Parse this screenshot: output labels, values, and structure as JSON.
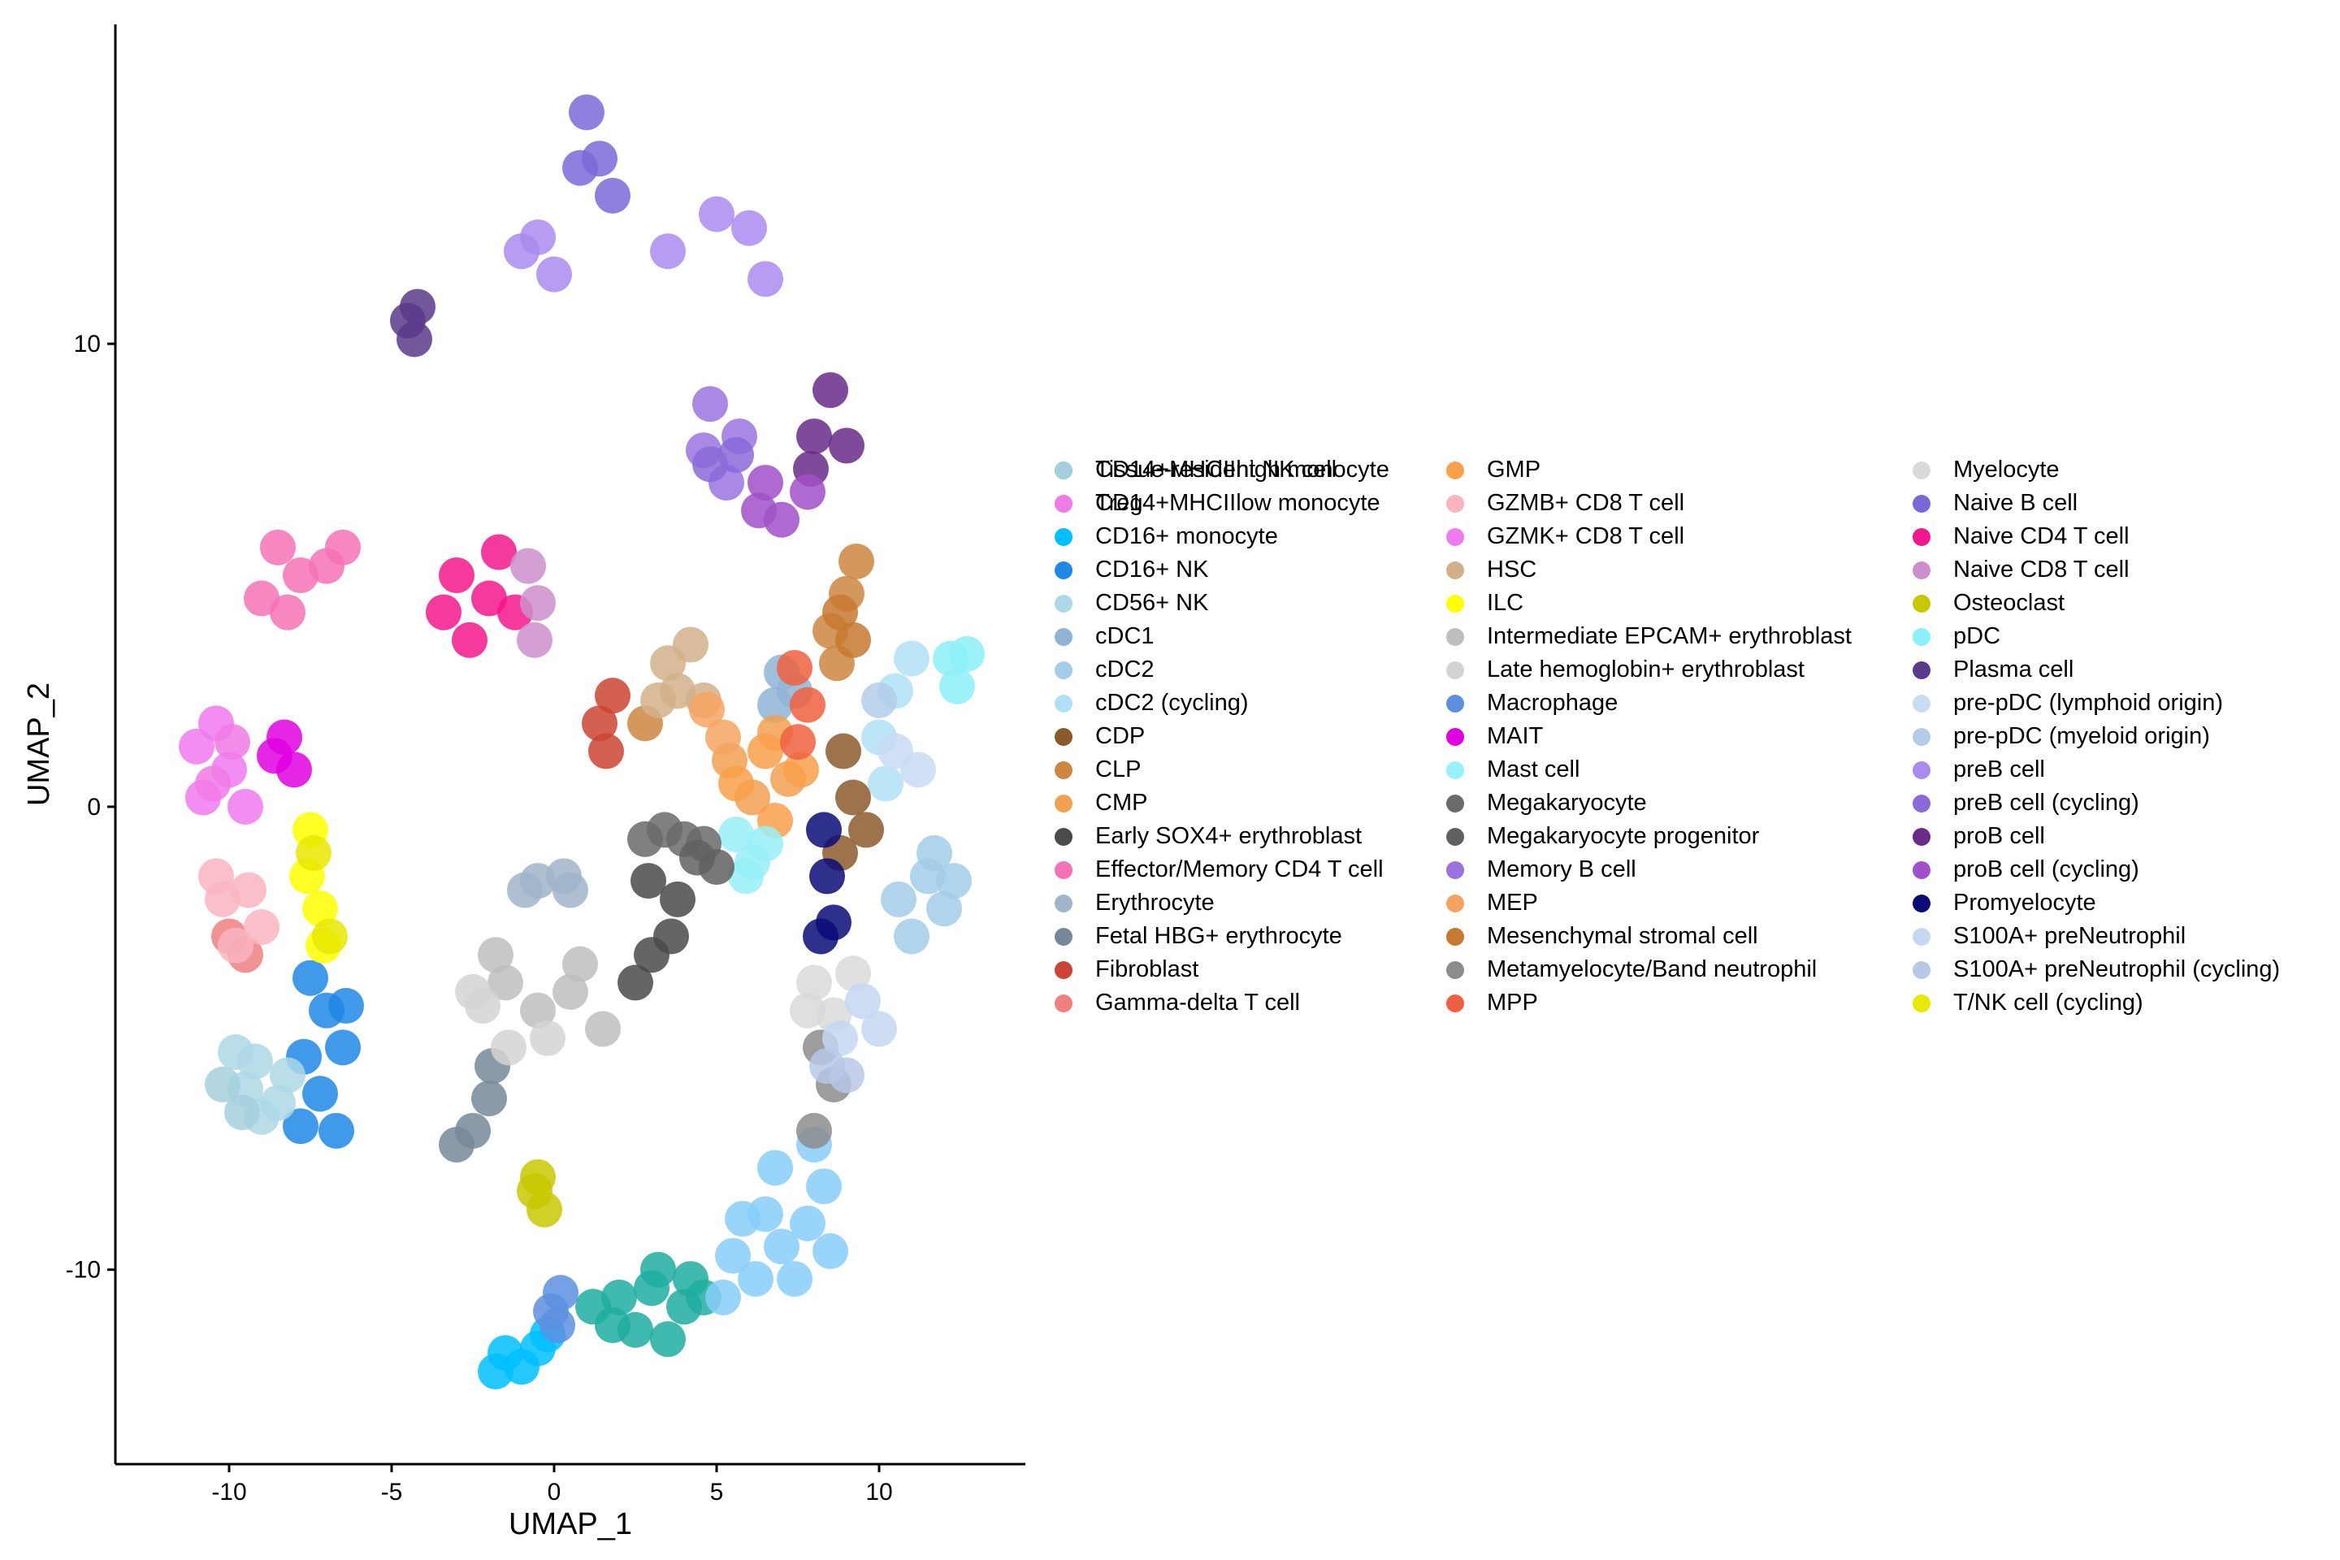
{
  "chart_data": {
    "type": "scatter",
    "title": "",
    "xlabel": "UMAP_1",
    "ylabel": "UMAP_2",
    "xlim": [
      -13.5,
      14.5
    ],
    "ylim": [
      -14.2,
      16.9
    ],
    "xticks": [
      -10,
      -5,
      0,
      5,
      10
    ],
    "yticks": [
      -10,
      0,
      10
    ],
    "grid": false,
    "legend_position": "right",
    "series": [
      {
        "name": "CD14+MHCIIhigh monocyte",
        "color": "#1FADA0",
        "points": [
          [
            1.2,
            -10.8
          ],
          [
            2,
            -10.6
          ],
          [
            3,
            -10.4
          ],
          [
            4,
            -10.8
          ],
          [
            2.5,
            -11.3
          ],
          [
            3.5,
            -11.5
          ],
          [
            4.6,
            -10.6
          ],
          [
            1.8,
            -11.2
          ],
          [
            3.2,
            -10.0
          ],
          [
            4.2,
            -10.2
          ]
        ]
      },
      {
        "name": "CD14+MHCIIlow monocyte",
        "color": "#87CEFA",
        "points": [
          [
            5.2,
            -10.6
          ],
          [
            6.2,
            -10.2
          ],
          [
            7,
            -9.5
          ],
          [
            7.8,
            -9.0
          ],
          [
            8.3,
            -8.2
          ],
          [
            6.5,
            -8.8
          ],
          [
            5.5,
            -9.7
          ],
          [
            8,
            -7.3
          ],
          [
            6.8,
            -7.8
          ],
          [
            8.5,
            -9.6
          ],
          [
            7.4,
            -10.2
          ],
          [
            5.8,
            -8.9
          ]
        ]
      },
      {
        "name": "CD16+ monocyte",
        "color": "#00BFFF",
        "points": [
          [
            -1.5,
            -11.8
          ],
          [
            -1,
            -12.1
          ],
          [
            -0.5,
            -11.7
          ],
          [
            -1.8,
            -12.2
          ],
          [
            -0.2,
            -11.4
          ]
        ]
      },
      {
        "name": "CD16+ NK",
        "color": "#1E88E5",
        "points": [
          [
            -7.5,
            -3.7
          ],
          [
            -7,
            -4.4
          ],
          [
            -6.5,
            -5.2
          ],
          [
            -7.2,
            -6.2
          ],
          [
            -6.7,
            -7.0
          ],
          [
            -7.8,
            -6.9
          ],
          [
            -6.4,
            -4.3
          ],
          [
            -7.7,
            -5.4
          ]
        ]
      },
      {
        "name": "CD56+ NK",
        "color": "#ADD8E6",
        "points": [
          [
            -9.8,
            -5.3
          ],
          [
            -9.5,
            -6.1
          ],
          [
            -9,
            -6.7
          ],
          [
            -8.5,
            -6.4
          ],
          [
            -9.2,
            -5.5
          ],
          [
            -8.2,
            -5.8
          ]
        ]
      },
      {
        "name": "cDC1",
        "color": "#8FB4D6",
        "points": [
          [
            7.0,
            2.9
          ],
          [
            7.4,
            2.5
          ],
          [
            6.8,
            2.2
          ]
        ]
      },
      {
        "name": "cDC2",
        "color": "#A2CCE8",
        "points": [
          [
            11.5,
            -1.5
          ],
          [
            12,
            -2.2
          ],
          [
            11,
            -2.8
          ],
          [
            11.7,
            -1.0
          ],
          [
            10.6,
            -2.0
          ],
          [
            12.3,
            -1.6
          ]
        ]
      },
      {
        "name": "cDC2 (cycling)",
        "color": "#B0E0F6",
        "points": [
          [
            10,
            1.5
          ],
          [
            10.5,
            2.5
          ],
          [
            11,
            3.2
          ],
          [
            10.2,
            0.5
          ]
        ]
      },
      {
        "name": "CDP",
        "color": "#8B5A2B",
        "points": [
          [
            8.8,
            -1.0
          ],
          [
            9.2,
            0.2
          ],
          [
            9.6,
            -0.5
          ],
          [
            8.9,
            1.2
          ]
        ]
      },
      {
        "name": "CLP",
        "color": "#CD853F",
        "points": [
          [
            8.5,
            3.8
          ],
          [
            9,
            4.6
          ],
          [
            8.7,
            3.1
          ],
          [
            2.8,
            1.8
          ],
          [
            9.3,
            5.3
          ]
        ]
      },
      {
        "name": "CMP",
        "color": "#F0A050",
        "points": [
          [
            6.8,
            1.6
          ],
          [
            7.2,
            0.6
          ],
          [
            5.4,
            1.0
          ],
          [
            6.1,
            0.2
          ]
        ]
      },
      {
        "name": "Early SOX4+ erythroblast",
        "color": "#4A4A4A",
        "points": [
          [
            3,
            -3.2
          ],
          [
            3.6,
            -2.8
          ],
          [
            2.5,
            -3.8
          ],
          [
            3.8,
            -2.0
          ],
          [
            2.9,
            -1.6
          ]
        ]
      },
      {
        "name": "Effector/Memory CD4 T cell",
        "color": "#F472B6",
        "points": [
          [
            -8.5,
            5.6
          ],
          [
            -7.8,
            5.0
          ],
          [
            -7,
            5.2
          ],
          [
            -9,
            4.5
          ],
          [
            -6.5,
            5.6
          ],
          [
            -8.2,
            4.2
          ]
        ]
      },
      {
        "name": "Erythrocyte",
        "color": "#A0B4CA",
        "points": [
          [
            -0.5,
            -1.6
          ],
          [
            0.3,
            -1.5
          ],
          [
            -0.9,
            -1.8
          ],
          [
            0.5,
            -1.8
          ]
        ]
      },
      {
        "name": "Fetal HBG+ erythrocyte",
        "color": "#778899",
        "points": [
          [
            -2.5,
            -7.0
          ],
          [
            -2,
            -6.3
          ],
          [
            -3,
            -7.3
          ],
          [
            -1.9,
            -5.6
          ]
        ]
      },
      {
        "name": "Fibroblast",
        "color": "#CC4433",
        "points": [
          [
            1.4,
            1.8
          ],
          [
            1.6,
            1.2
          ],
          [
            1.8,
            2.4
          ]
        ]
      },
      {
        "name": "Gamma-delta T cell",
        "color": "#F08080",
        "points": [
          [
            -10,
            -2.8
          ],
          [
            -9.5,
            -3.2
          ]
        ]
      },
      {
        "name": "GMP",
        "color": "#F9A04A",
        "points": [
          [
            6.5,
            1.2
          ],
          [
            6.8,
            -0.3
          ],
          [
            5.6,
            0.5
          ],
          [
            7.6,
            0.8
          ]
        ]
      },
      {
        "name": "GZMB+ CD8 T cell",
        "color": "#F9B4C0",
        "points": [
          [
            -10.2,
            -2.0
          ],
          [
            -9.8,
            -3.0
          ],
          [
            -9,
            -2.6
          ],
          [
            -10.4,
            -1.5
          ],
          [
            -9.4,
            -1.8
          ]
        ]
      },
      {
        "name": "GZMK+ CD8 T cell",
        "color": "#F07AF0",
        "points": [
          [
            -11,
            1.3
          ],
          [
            -10,
            0.8
          ],
          [
            -9.5,
            0.0
          ],
          [
            -10.8,
            0.2
          ],
          [
            -10.4,
            1.8
          ]
        ]
      },
      {
        "name": "HSC",
        "color": "#D2B08A",
        "points": [
          [
            3.5,
            3.1
          ],
          [
            4.2,
            3.5
          ],
          [
            3.8,
            2.5
          ],
          [
            4.6,
            2.3
          ],
          [
            3.2,
            2.3
          ]
        ]
      },
      {
        "name": "ILC",
        "color": "#FFFF00",
        "points": [
          [
            -7.6,
            -1.5
          ],
          [
            -7.1,
            -3.0
          ],
          [
            -7.5,
            -0.5
          ],
          [
            -7.2,
            -2.2
          ]
        ]
      },
      {
        "name": "Intermediate EPCAM+ erythroblast",
        "color": "#BEBEBE",
        "points": [
          [
            -1.5,
            -3.8
          ],
          [
            -0.5,
            -4.4
          ],
          [
            0.5,
            -4.0
          ],
          [
            1.5,
            -4.8
          ],
          [
            -1.8,
            -3.2
          ],
          [
            0.8,
            -3.4
          ]
        ]
      },
      {
        "name": "Late hemoglobin+ erythroblast",
        "color": "#D3D3D3",
        "points": [
          [
            -2.2,
            -4.3
          ],
          [
            -1.4,
            -5.2
          ],
          [
            -0.2,
            -5.0
          ],
          [
            -2.5,
            -4.0
          ]
        ]
      },
      {
        "name": "Macrophage",
        "color": "#5C8FE0",
        "points": [
          [
            -0.1,
            -10.9
          ],
          [
            0.1,
            -11.2
          ],
          [
            0.2,
            -10.5
          ]
        ]
      },
      {
        "name": "MAIT",
        "color": "#E000E0",
        "points": [
          [
            -8.3,
            1.5
          ],
          [
            -8.6,
            1.1
          ],
          [
            -8.0,
            0.8
          ]
        ]
      },
      {
        "name": "Mast cell",
        "color": "#98F0F8",
        "points": [
          [
            5.6,
            -0.6
          ],
          [
            6.1,
            -1.2
          ],
          [
            6.5,
            -0.8
          ],
          [
            5.9,
            -1.5
          ]
        ]
      },
      {
        "name": "Megakaryocyte",
        "color": "#6A6A6A",
        "points": [
          [
            2.8,
            -0.7
          ],
          [
            3.4,
            -0.5
          ],
          [
            4.0,
            -0.7
          ],
          [
            4.6,
            -0.8
          ]
        ]
      },
      {
        "name": "Megakaryocyte progenitor",
        "color": "#606060",
        "points": [
          [
            4.4,
            -1.1
          ],
          [
            5.0,
            -1.3
          ]
        ]
      },
      {
        "name": "Memory B cell",
        "color": "#9B73E0",
        "points": [
          [
            4.6,
            7.7
          ],
          [
            5.3,
            7.0
          ],
          [
            5.7,
            8.0
          ],
          [
            4.8,
            8.7
          ]
        ]
      },
      {
        "name": "MEP",
        "color": "#F4A460",
        "points": [
          [
            4.7,
            2.1
          ],
          [
            5.2,
            1.5
          ]
        ]
      },
      {
        "name": "Mesenchymal stromal cell",
        "color": "#C87830",
        "points": [
          [
            8.8,
            4.2
          ],
          [
            9.2,
            3.6
          ]
        ]
      },
      {
        "name": "Metamyelocyte/Band neutrophil",
        "color": "#8C8C8C",
        "points": [
          [
            8.2,
            -5.2
          ],
          [
            8.6,
            -6.0
          ],
          [
            8.0,
            -7.0
          ]
        ]
      },
      {
        "name": "MPP",
        "color": "#F06040",
        "points": [
          [
            7.4,
            3.0
          ],
          [
            7.8,
            2.2
          ],
          [
            7.5,
            1.4
          ]
        ]
      },
      {
        "name": "Myelocyte",
        "color": "#D9D9D9",
        "points": [
          [
            8.0,
            -3.8
          ],
          [
            8.6,
            -4.5
          ],
          [
            9.2,
            -3.6
          ],
          [
            7.8,
            -4.4
          ]
        ]
      },
      {
        "name": "Naive B cell",
        "color": "#7B68D8",
        "points": [
          [
            1.0,
            15.0
          ],
          [
            1.4,
            14.0
          ],
          [
            1.8,
            13.2
          ],
          [
            0.8,
            13.8
          ]
        ]
      },
      {
        "name": "Naive CD4 T cell",
        "color": "#F4168C",
        "points": [
          [
            -3.0,
            5.0
          ],
          [
            -2.0,
            4.5
          ],
          [
            -1.2,
            4.2
          ],
          [
            -2.6,
            3.6
          ],
          [
            -1.7,
            5.5
          ],
          [
            -3.4,
            4.2
          ]
        ]
      },
      {
        "name": "Naive CD8 T cell",
        "color": "#CC8FCC",
        "points": [
          [
            -0.5,
            4.4
          ],
          [
            -0.8,
            5.2
          ],
          [
            -0.6,
            3.6
          ]
        ]
      },
      {
        "name": "Osteoclast",
        "color": "#C8C800",
        "points": [
          [
            -0.6,
            -8.3
          ],
          [
            -0.5,
            -8.0
          ],
          [
            -0.3,
            -8.7
          ]
        ]
      },
      {
        "name": "pDC",
        "color": "#8CF0F8",
        "points": [
          [
            12.2,
            3.2
          ],
          [
            12.7,
            3.3
          ],
          [
            12.4,
            2.6
          ]
        ]
      },
      {
        "name": "Plasma cell",
        "color": "#5A3A8A",
        "points": [
          [
            -4.5,
            10.5
          ],
          [
            -4.3,
            10.1
          ],
          [
            -4.2,
            10.8
          ]
        ]
      },
      {
        "name": "pre-pDC (lymphoid origin)",
        "color": "#C8DCF4",
        "points": [
          [
            10.5,
            1.2
          ],
          [
            11.2,
            0.8
          ]
        ]
      },
      {
        "name": "pre-pDC (myeloid origin)",
        "color": "#B4CCEA",
        "points": [
          [
            10.0,
            2.3
          ]
        ]
      },
      {
        "name": "preB cell",
        "color": "#A98BF0",
        "points": [
          [
            -1.0,
            12.0
          ],
          [
            0.0,
            11.5
          ],
          [
            -0.5,
            12.3
          ],
          [
            3.5,
            12.0
          ],
          [
            6.0,
            12.5
          ],
          [
            6.5,
            11.4
          ],
          [
            5.0,
            12.8
          ]
        ]
      },
      {
        "name": "preB cell (cycling)",
        "color": "#8A6AD8",
        "points": [
          [
            4.8,
            7.4
          ],
          [
            5.6,
            7.6
          ]
        ]
      },
      {
        "name": "proB cell",
        "color": "#6A2A88",
        "points": [
          [
            8.0,
            8.0
          ],
          [
            9.0,
            7.8
          ],
          [
            8.5,
            9.0
          ],
          [
            7.9,
            7.3
          ]
        ]
      },
      {
        "name": "proB cell (cycling)",
        "color": "#A050C8",
        "points": [
          [
            6.5,
            7.0
          ],
          [
            7.0,
            6.2
          ],
          [
            7.8,
            6.8
          ],
          [
            6.3,
            6.4
          ]
        ]
      },
      {
        "name": "Promyelocyte",
        "color": "#0A0A78",
        "points": [
          [
            8.3,
            -0.5
          ],
          [
            8.4,
            -1.5
          ],
          [
            8.6,
            -2.5
          ],
          [
            8.2,
            -2.8
          ]
        ]
      },
      {
        "name": "S100A+ preNeutrophil",
        "color": "#C4D8F2",
        "points": [
          [
            8.8,
            -5.0
          ],
          [
            9.5,
            -4.2
          ],
          [
            10.0,
            -4.8
          ]
        ]
      },
      {
        "name": "S100A+ preNeutrophil (cycling)",
        "color": "#B8C8E8",
        "points": [
          [
            8.4,
            -5.6
          ],
          [
            9.0,
            -5.8
          ]
        ]
      },
      {
        "name": "T/NK cell (cycling)",
        "color": "#E8E800",
        "points": [
          [
            -6.9,
            -2.8
          ],
          [
            -7.4,
            -1.0
          ]
        ]
      },
      {
        "name": "Tissue-resident NK cell",
        "color": "#A4D0DC",
        "points": [
          [
            -10.2,
            -6.0
          ],
          [
            -9.6,
            -6.6
          ]
        ]
      },
      {
        "name": "Treg",
        "color": "#F07AE6",
        "points": [
          [
            -10.5,
            0.5
          ],
          [
            -9.9,
            1.4
          ]
        ]
      }
    ]
  }
}
